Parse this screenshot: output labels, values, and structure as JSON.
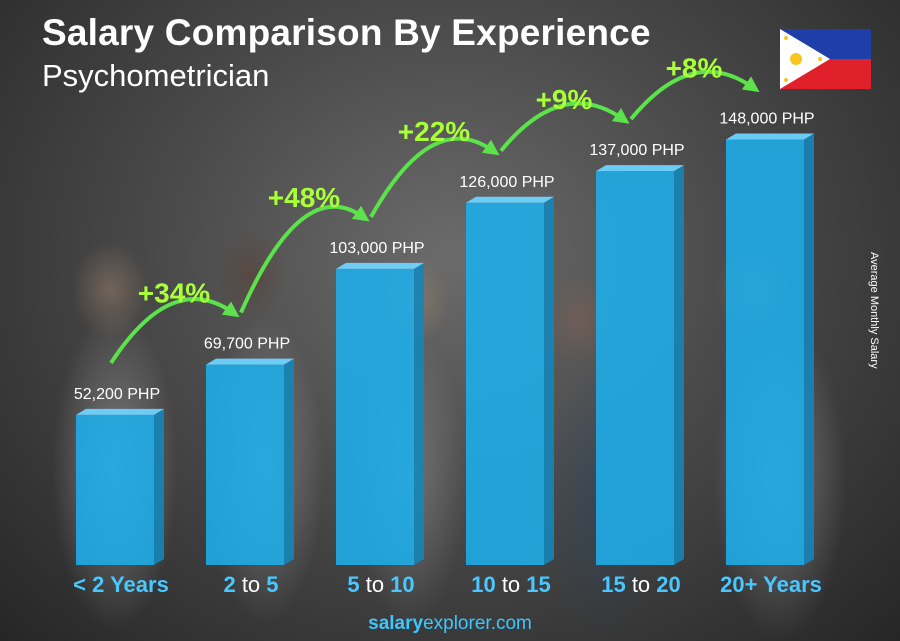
{
  "header": {
    "title": "Salary Comparison By Experience",
    "subtitle": "Psychometrician"
  },
  "side_label": "Average Monthly Salary",
  "footer": {
    "brand_bold": "salary",
    "brand_light": "explorer",
    "brand_tld": ".com"
  },
  "colors": {
    "bar_front": "#1eaeea",
    "bar_side": "#1585b8",
    "bar_top": "#6fd3ff",
    "arrow": "#5ce24a",
    "pct_text": "#a8ff3a",
    "cat_num": "#48c8ff",
    "cat_word": "#ffffff"
  },
  "chart_data": {
    "type": "bar",
    "categories": [
      "< 2 Years",
      "2 to 5",
      "5 to 10",
      "10 to 15",
      "15 to 20",
      "20+ Years"
    ],
    "category_parts": [
      [
        {
          "t": "< 2 Years",
          "s": "num"
        }
      ],
      [
        {
          "t": "2",
          "s": "num"
        },
        {
          "t": " to ",
          "s": "word"
        },
        {
          "t": "5",
          "s": "num"
        }
      ],
      [
        {
          "t": "5",
          "s": "num"
        },
        {
          "t": " to ",
          "s": "word"
        },
        {
          "t": "10",
          "s": "num"
        }
      ],
      [
        {
          "t": "10",
          "s": "num"
        },
        {
          "t": " to ",
          "s": "word"
        },
        {
          "t": "15",
          "s": "num"
        }
      ],
      [
        {
          "t": "15",
          "s": "num"
        },
        {
          "t": " to ",
          "s": "word"
        },
        {
          "t": "20",
          "s": "num"
        }
      ],
      [
        {
          "t": "20+ Years",
          "s": "num"
        }
      ]
    ],
    "values": [
      52200,
      69700,
      103000,
      126000,
      137000,
      148000
    ],
    "value_labels": [
      "52,200 PHP",
      "69,700 PHP",
      "103,000 PHP",
      "126,000 PHP",
      "137,000 PHP",
      "148,000 PHP"
    ],
    "changes": [
      "+34%",
      "+48%",
      "+22%",
      "+9%",
      "+8%"
    ],
    "unit": "PHP",
    "ylabel": "Average Monthly Salary",
    "ylim": [
      0,
      160000
    ]
  }
}
